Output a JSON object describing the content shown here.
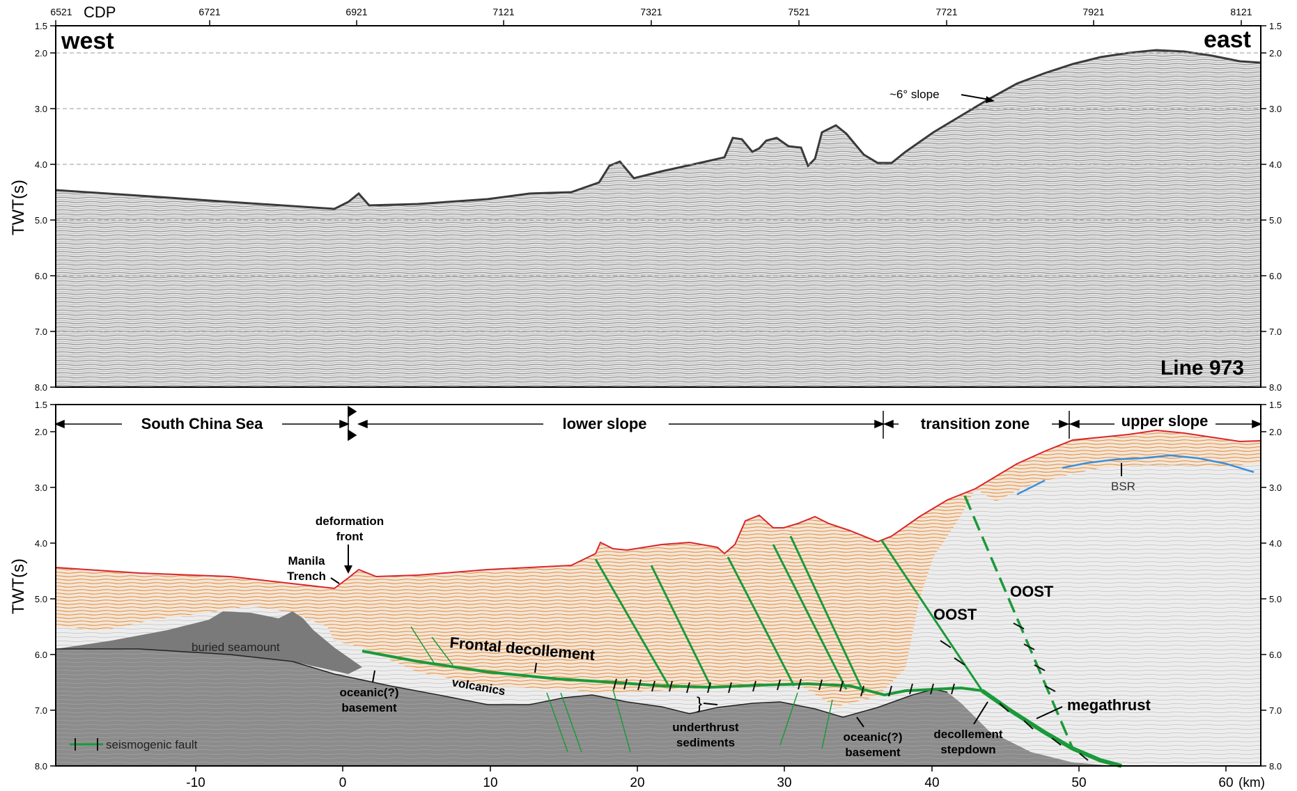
{
  "top_panel": {
    "cdp_label": "CDP",
    "cdp_ticks": [
      "6521",
      "6721",
      "6921",
      "7121",
      "7321",
      "7521",
      "7721",
      "7921",
      "8121"
    ],
    "west_label": "west",
    "east_label": "east",
    "line_label": "Line 973",
    "slope_annotation": "~6° slope",
    "y_axis_label": "TWT(s)",
    "y_ticks": [
      "1.5",
      "2.0",
      "3.0",
      "4.0",
      "5.0",
      "6.0",
      "7.0",
      "8.0"
    ]
  },
  "bottom_panel": {
    "y_axis_label": "TWT(s)",
    "y_ticks": [
      "1.5",
      "2.0",
      "3.0",
      "4.0",
      "5.0",
      "6.0",
      "7.0",
      "8.0"
    ],
    "x_ticks": [
      "-10",
      "0",
      "10",
      "20",
      "30",
      "40",
      "50",
      "60"
    ],
    "x_unit": "(km)",
    "zones": {
      "south_china_sea": "South China Sea",
      "lower_slope": "lower slope",
      "transition_zone": "transition zone",
      "upper_slope": "upper slope"
    },
    "labels": {
      "deformation_front": [
        "deformation",
        "front"
      ],
      "manila_trench": [
        "Manila",
        "Trench"
      ],
      "buried_seamount": "buried seamount",
      "oceanic_basement_1": [
        "oceanic(?)",
        "basement"
      ],
      "volcanics": "volcanics",
      "frontal_decollement": "Frontal decollement",
      "underthrust_sediments": [
        "underthrust",
        "sediments"
      ],
      "oceanic_basement_2": [
        "oceanic(?)",
        "basement"
      ],
      "decollement_stepdown": [
        "decollement",
        "stepdown"
      ],
      "megathrust": "megathrust",
      "oost_1": "OOST",
      "oost_2": "OOST",
      "bsr": "BSR"
    },
    "legend": {
      "seismogenic_fault": "seismogenic fault"
    }
  },
  "colors": {
    "seafloor": "#d9262b",
    "sediment": "#e08a3a",
    "fault": "#1a9a3a",
    "basement": "#8f8f8f",
    "bsr": "#3c8fd8",
    "seismic_bg": "#e4e4e4"
  }
}
